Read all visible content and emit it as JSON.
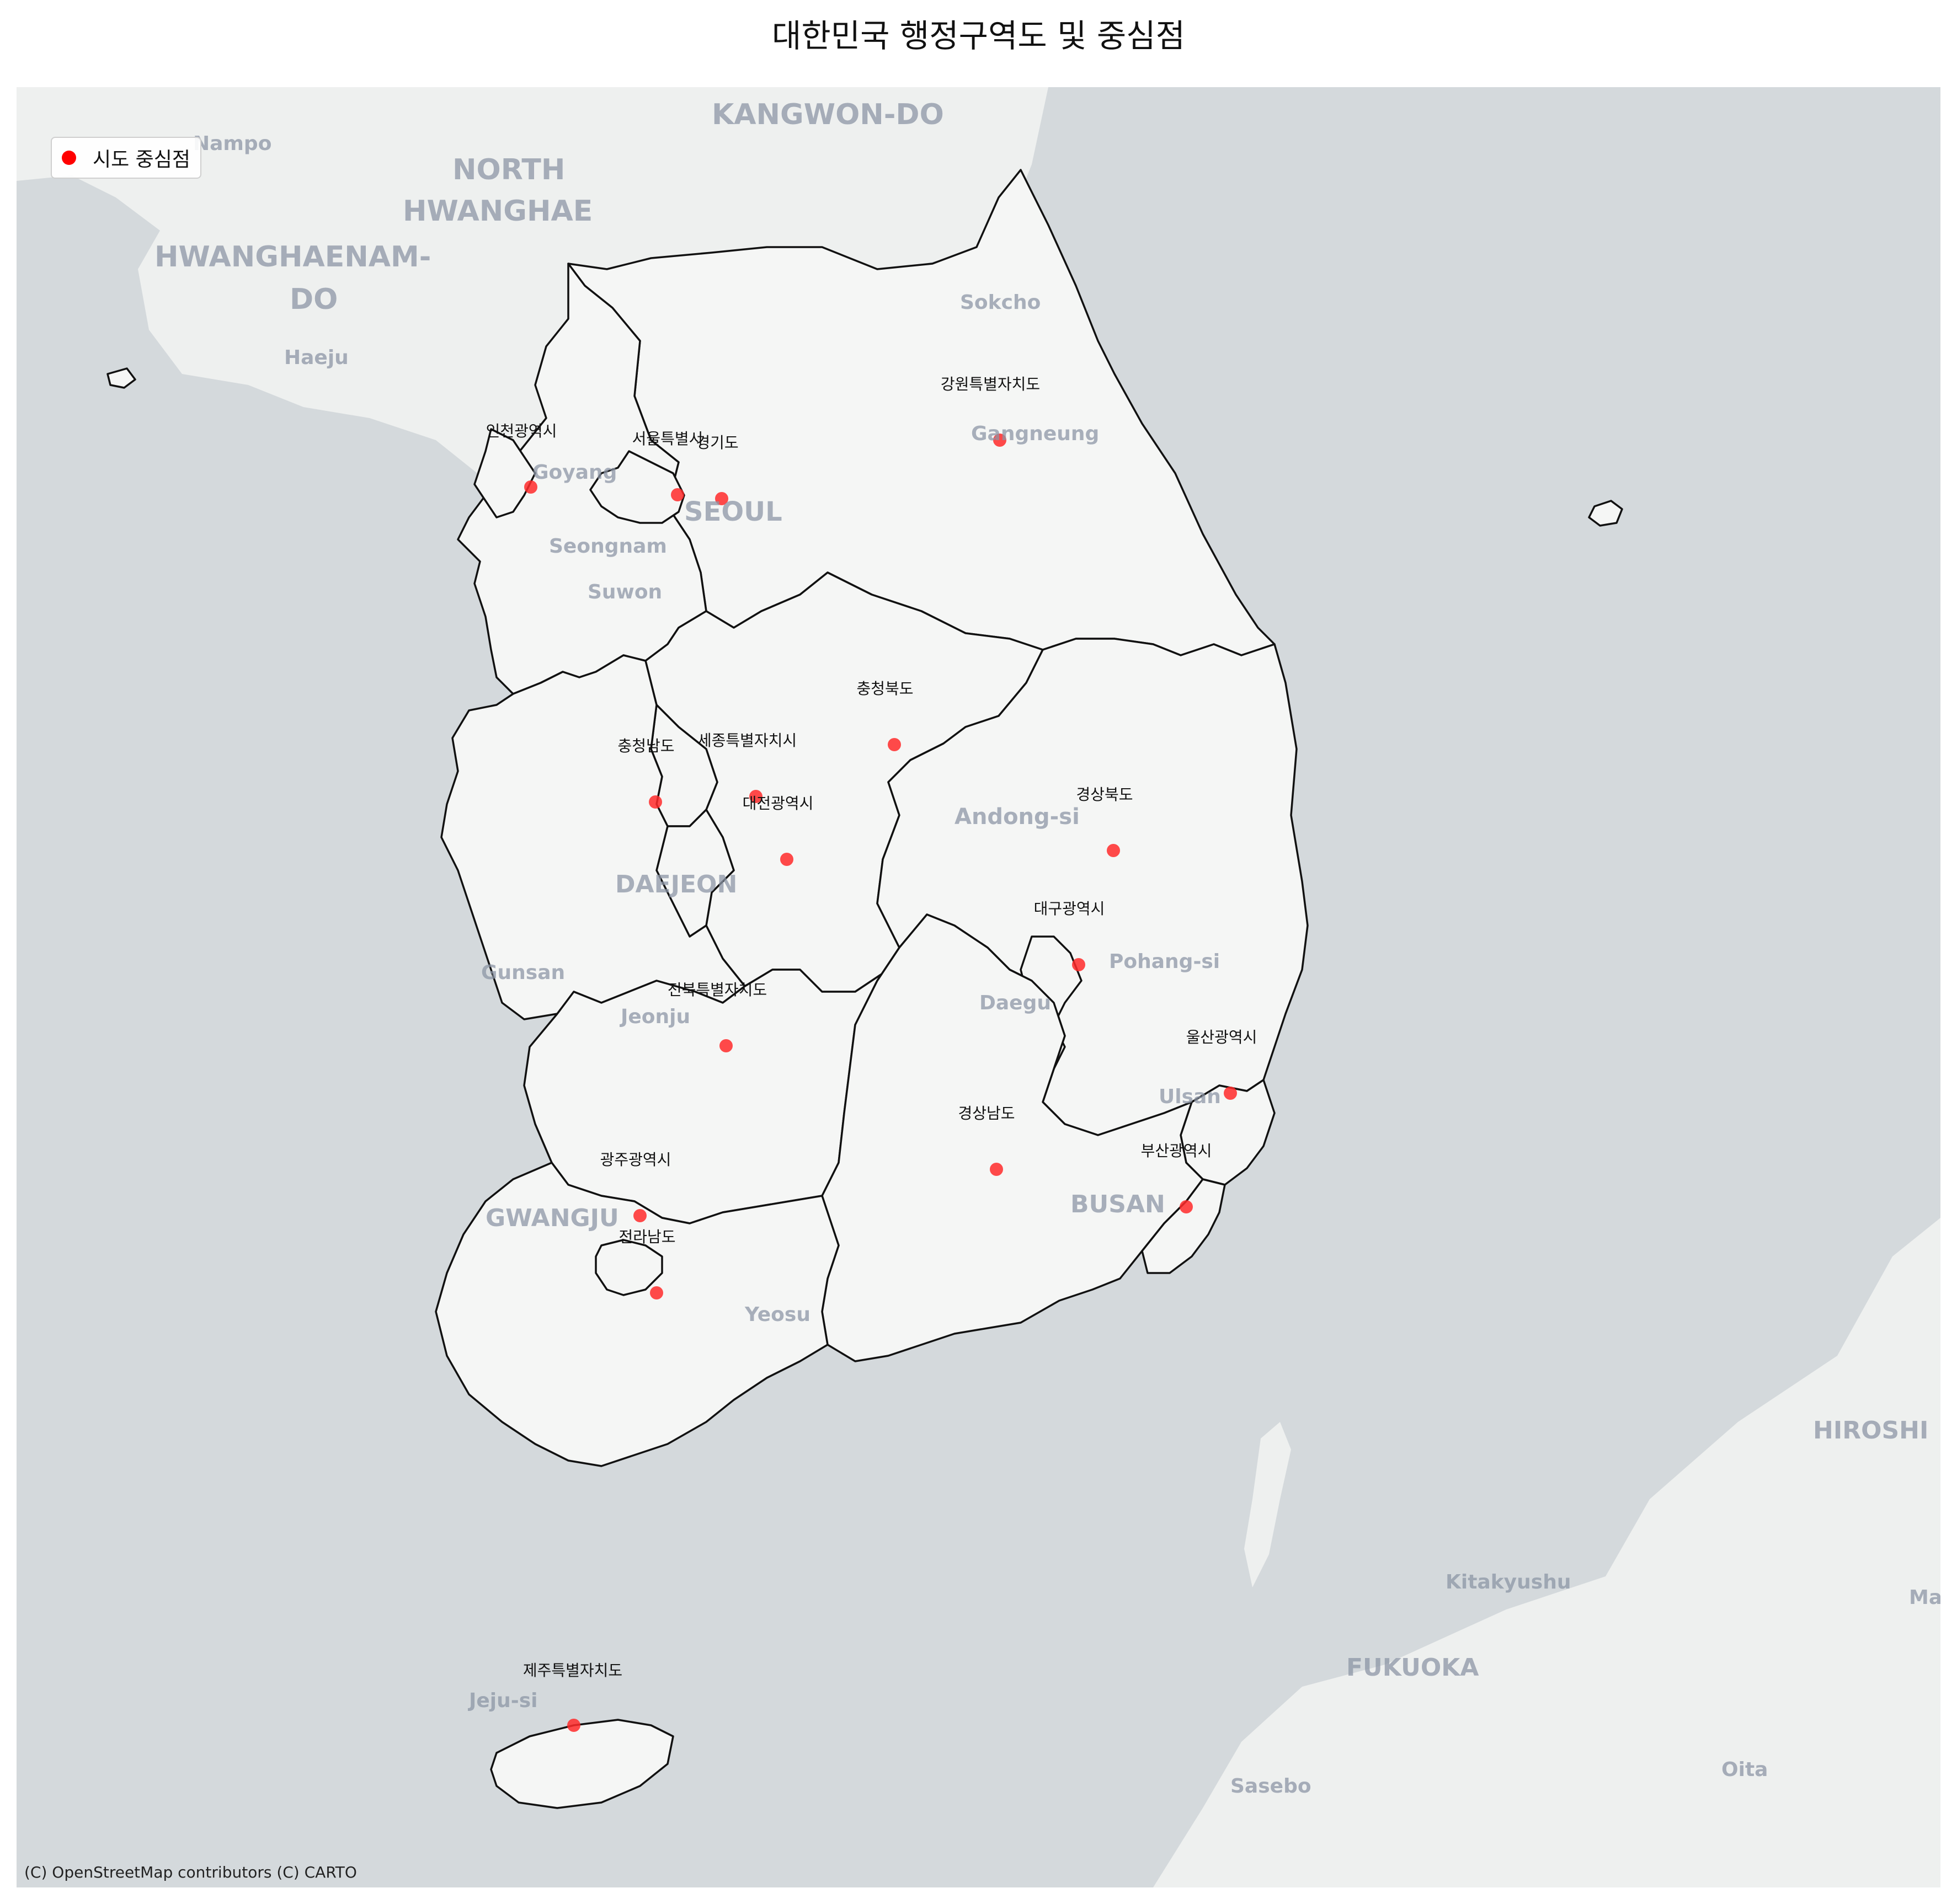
{
  "title": "대한민국 행정구역도 및 중심점",
  "legend": {
    "label": "시도 중심점",
    "marker_color": "#ff0000"
  },
  "attribution": "(C) OpenStreetMap contributors (C) CARTO",
  "colors": {
    "sea": "#d4d9dc",
    "land": "#f5f6f5",
    "land_foreign": "#eef0ef",
    "boundary": "#111111",
    "centroid": "#ff2a2a"
  },
  "basemap_labels": [
    "KANGWON-DO",
    "Nampo",
    "NORTH",
    "HWANGHAE",
    "HWANGHAENAM-",
    "DO",
    "Haeju",
    "Sokcho",
    "Gangneung",
    "Goyang",
    "SEOUL",
    "Seongnam",
    "Suwon",
    "Andong-si",
    "DAEJEON",
    "Gunsan",
    "Pohang-si",
    "Daegu",
    "Jeonju",
    "Ulsan",
    "BUSAN",
    "GWANGJU",
    "Yeosu",
    "Jeju-si",
    "Kitakyushu",
    "FUKUOKA",
    "HIROSHI",
    "Ma",
    "Sasebo",
    "Oita"
  ],
  "regions": [
    {
      "name": "강원특별자치도"
    },
    {
      "name": "인천광역시"
    },
    {
      "name": "서울특별시"
    },
    {
      "name": "경기도"
    },
    {
      "name": "충청북도"
    },
    {
      "name": "세종특별자치시"
    },
    {
      "name": "충청남도"
    },
    {
      "name": "대전광역시"
    },
    {
      "name": "경상북도"
    },
    {
      "name": "대구광역시"
    },
    {
      "name": "전북특별자치도"
    },
    {
      "name": "울산광역시"
    },
    {
      "name": "경상남도"
    },
    {
      "name": "부산광역시"
    },
    {
      "name": "광주광역시"
    },
    {
      "name": "전라남도"
    },
    {
      "name": "제주특별자치도"
    }
  ]
}
